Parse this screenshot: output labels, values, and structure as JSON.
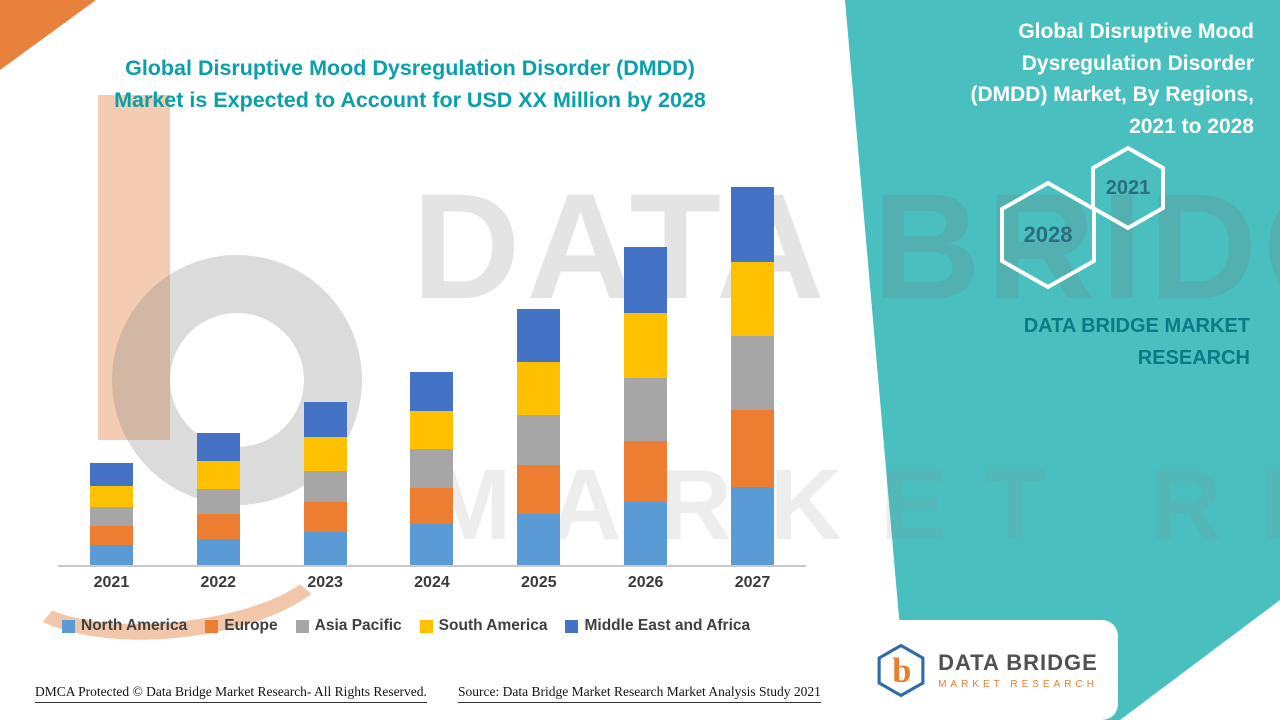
{
  "title": {
    "line1": "Global Disruptive Mood Dysregulation Disorder (DMDD)",
    "line2": "Market is Expected to Account for USD XX Million by 2028",
    "color": "#0AA0AA"
  },
  "side_panel": {
    "bg_color": "#49BFBF",
    "title": "Global Disruptive Mood Dysregulation Disorder (DMDD) Market, By Regions, 2021 to 2028",
    "hexagons": [
      {
        "label": "2028"
      },
      {
        "label": "2021"
      }
    ],
    "brand_line1": "DATA BRIDGE MARKET",
    "brand_line2": "RESEARCH"
  },
  "watermark": {
    "line1": "DATA BRIDGE",
    "line2": "MARKET RESEARCH"
  },
  "chart_data": {
    "type": "bar",
    "stacked": true,
    "title": "Global Disruptive Mood Dysregulation Disorder (DMDD) Market is Expected to Account for USD XX Million by 2028",
    "categories": [
      "2021",
      "2022",
      "2023",
      "2024",
      "2025",
      "2026",
      "2027"
    ],
    "series": [
      {
        "name": "North America",
        "color": "#5B9BD5",
        "values": [
          20,
          26,
          32,
          40,
          50,
          62,
          77
        ]
      },
      {
        "name": "Europe",
        "color": "#ED7D31",
        "values": [
          18,
          24,
          30,
          36,
          48,
          60,
          76
        ]
      },
      {
        "name": "Asia Pacific",
        "color": "#A6A6A6",
        "values": [
          19,
          25,
          31,
          38,
          50,
          62,
          72
        ]
      },
      {
        "name": "South America",
        "color": "#FFC000",
        "values": [
          21,
          27,
          33,
          38,
          52,
          64,
          73
        ]
      },
      {
        "name": "Middle East and Africa",
        "color": "#4472C4",
        "values": [
          22,
          28,
          34,
          38,
          52,
          65,
          74
        ]
      }
    ],
    "xlabel": "",
    "ylabel": "",
    "ylim": [
      0,
      380
    ],
    "value_note": "No y-axis shown; values are relative estimates of stacked segment heights (market sized as USD XX Million)",
    "grid": false,
    "legend_position": "bottom"
  },
  "footer": {
    "dmca": "DMCA Protected © Data Bridge Market Research- All Rights Reserved.",
    "source": "Source: Data Bridge Market Research Market Analysis Study 2021"
  },
  "logo": {
    "glyph": "b",
    "name": "DATA BRIDGE",
    "subtitle": "MARKET RESEARCH"
  }
}
